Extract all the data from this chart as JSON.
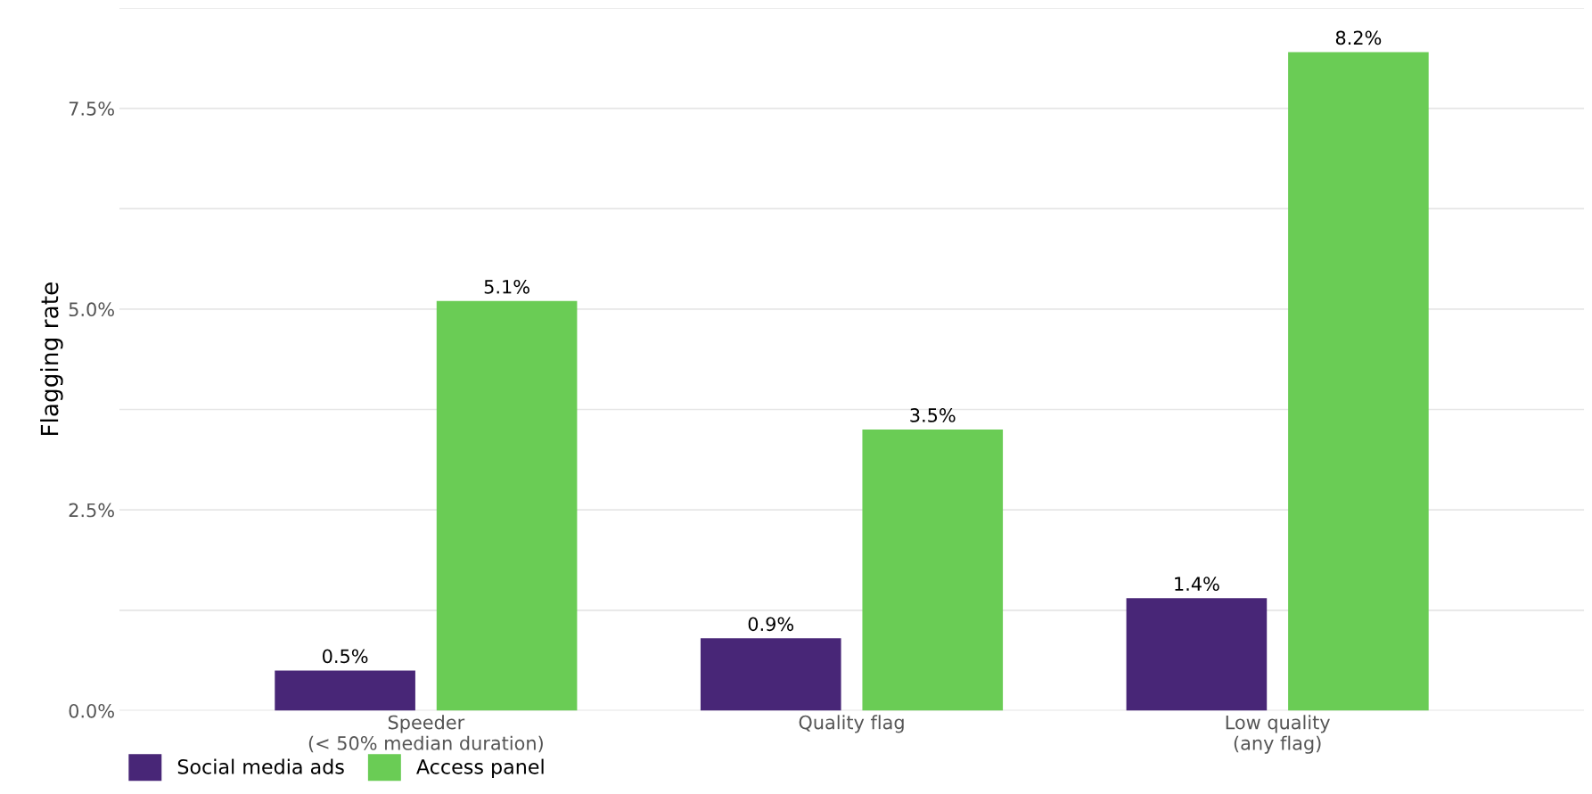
{
  "chart_data": {
    "type": "bar",
    "ylabel": "Flagging rate",
    "categories": [
      "Speeder\n(< 50% median duration)",
      "Quality flag",
      "Low quality\n(any flag)"
    ],
    "series": [
      {
        "name": "Social media ads",
        "color": "#482677",
        "values": [
          0.5,
          0.9,
          1.4
        ],
        "value_labels": [
          "0.5%",
          "0.9%",
          "1.4%"
        ]
      },
      {
        "name": "Access panel",
        "color": "#6acc55",
        "values": [
          5.1,
          3.5,
          8.2
        ],
        "value_labels": [
          "5.1%",
          "3.5%",
          "8.2%"
        ]
      }
    ],
    "ylim": [
      0,
      8.75
    ],
    "yticks": [
      {
        "value": 0,
        "label": "0.0%"
      },
      {
        "value": 1.25,
        "label": null
      },
      {
        "value": 2.5,
        "label": "2.5%"
      },
      {
        "value": 3.75,
        "label": null
      },
      {
        "value": 5,
        "label": "5.0%"
      },
      {
        "value": 6.25,
        "label": null
      },
      {
        "value": 7.5,
        "label": "7.5%"
      },
      {
        "value": 8.75,
        "label": null
      }
    ],
    "grid": "y",
    "legend": "bottom left"
  }
}
